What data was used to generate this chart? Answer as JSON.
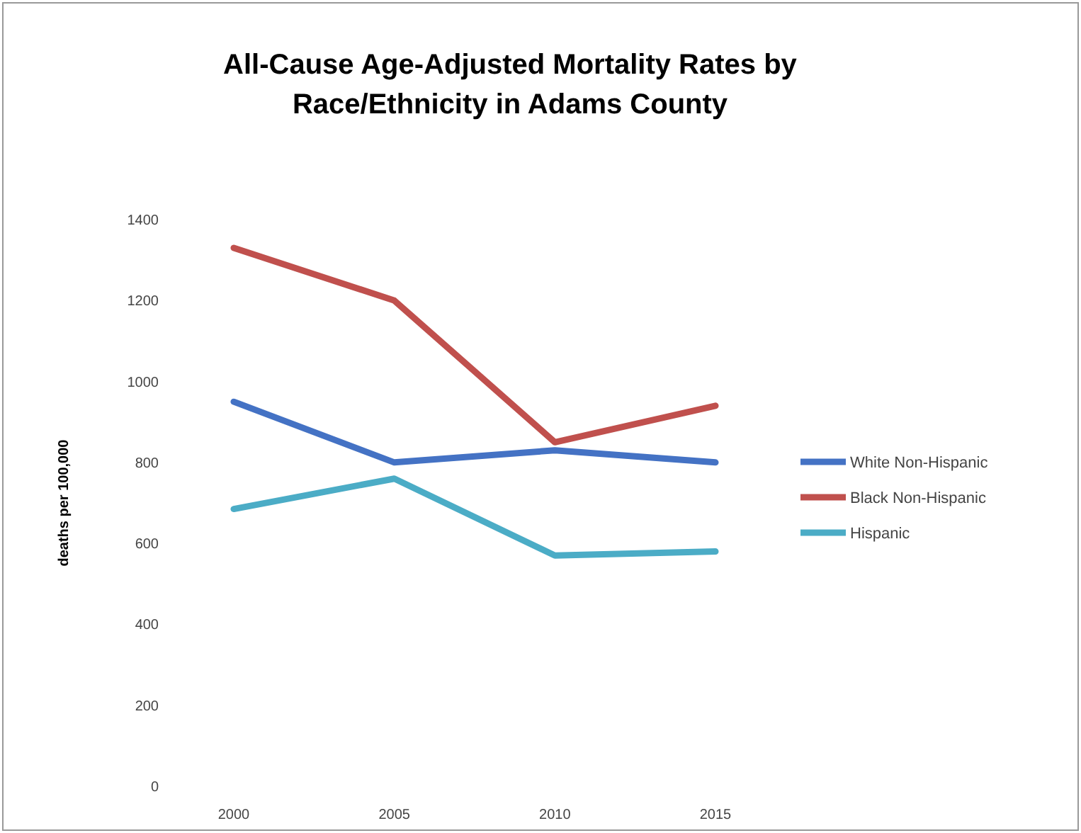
{
  "chart_data": {
    "type": "line",
    "title": "All-Cause Age-Adjusted Mortality Rates by Race/Ethnicity in Adams County",
    "ylabel": "deaths per 100,000",
    "categories": [
      "2000",
      "2005",
      "2010",
      "2015"
    ],
    "series": [
      {
        "name": "White Non-Hispanic",
        "color": "#4472c4",
        "values": [
          950,
          800,
          830,
          800
        ]
      },
      {
        "name": "Black Non-Hispanic",
        "color": "#c0504d",
        "values": [
          1330,
          1200,
          850,
          940
        ]
      },
      {
        "name": "Hispanic",
        "color": "#4bacc6",
        "values": [
          685,
          760,
          570,
          580
        ]
      }
    ],
    "ylim": [
      0,
      1400
    ],
    "yticks": [
      0,
      200,
      400,
      600,
      800,
      1000,
      1200,
      1400
    ],
    "grid": false,
    "legend": "right",
    "marker": "none",
    "line_style": "solid"
  }
}
